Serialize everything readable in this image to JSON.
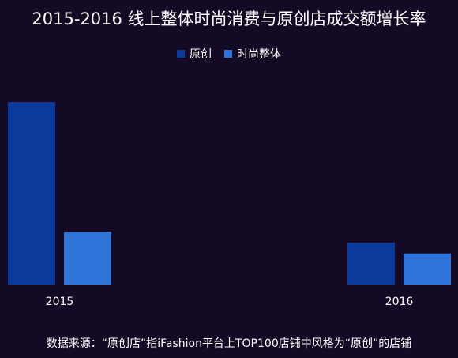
{
  "chart_data": {
    "type": "bar",
    "title": "2015-2016 线上整体时尚消费与原创店成交额增长率",
    "categories": [
      "2015",
      "2016"
    ],
    "series": [
      {
        "name": "原创",
        "color": "#0a3a9c",
        "values": [
          100,
          23
        ]
      },
      {
        "name": "时尚整体",
        "color": "#2f74d8",
        "values": [
          29,
          17
        ]
      }
    ],
    "ylim": [
      0,
      100
    ],
    "grid": false,
    "legend": "top-center",
    "yaxis_visible": false
  },
  "footnote": "数据来源：“原创店”指iFashion平台上TOP100店铺中风格为“原创”的店铺"
}
